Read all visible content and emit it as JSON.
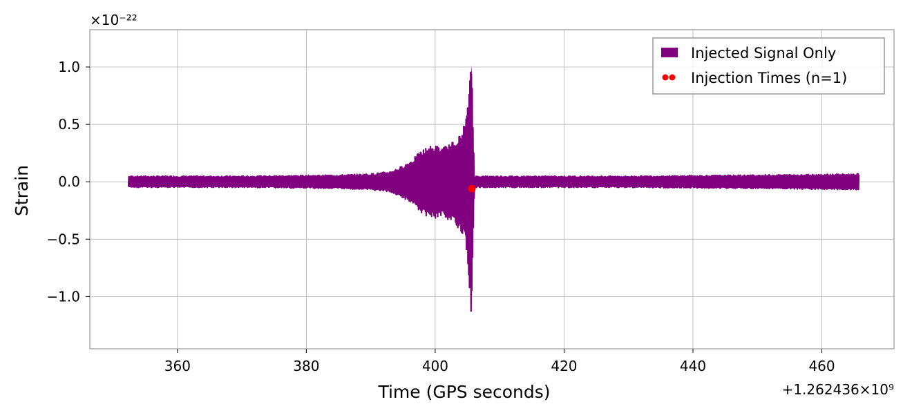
{
  "chart_data": {
    "type": "line",
    "xlabel": "Time (GPS seconds)",
    "ylabel": "Strain",
    "x_offset_text": "+1.262436×10⁹",
    "y_scale_text": "×10⁻²²",
    "xlim": [
      346.4,
      471.2
    ],
    "ylim": [
      -1.455,
      1.325
    ],
    "grid": true,
    "legend_position": "top-right",
    "x_ticks": [
      {
        "value": 360,
        "label": "360"
      },
      {
        "value": 380,
        "label": "380"
      },
      {
        "value": 400,
        "label": "400"
      },
      {
        "value": 420,
        "label": "420"
      },
      {
        "value": 440,
        "label": "440"
      },
      {
        "value": 460,
        "label": "460"
      }
    ],
    "y_ticks": [
      {
        "value": 1.0,
        "label": "1.0"
      },
      {
        "value": 0.5,
        "label": "0.5"
      },
      {
        "value": 0.0,
        "label": "0.0"
      },
      {
        "value": -0.5,
        "label": "−0.5"
      },
      {
        "value": -1.0,
        "label": "−1.0"
      }
    ],
    "series": [
      {
        "name": "Injected Signal Only",
        "color": "#800080",
        "style": "envelope",
        "envelope": [
          {
            "t": 352.4,
            "upper": 0.05,
            "lower": -0.05
          },
          {
            "t": 370.0,
            "upper": 0.05,
            "lower": -0.05
          },
          {
            "t": 385.0,
            "upper": 0.06,
            "lower": -0.06
          },
          {
            "t": 390.0,
            "upper": 0.07,
            "lower": -0.07
          },
          {
            "t": 393.0,
            "upper": 0.09,
            "lower": -0.09
          },
          {
            "t": 395.0,
            "upper": 0.14,
            "lower": -0.14
          },
          {
            "t": 396.5,
            "upper": 0.2,
            "lower": -0.2
          },
          {
            "t": 398.0,
            "upper": 0.28,
            "lower": -0.28
          },
          {
            "t": 399.0,
            "upper": 0.31,
            "lower": -0.31
          },
          {
            "t": 400.0,
            "upper": 0.32,
            "lower": -0.32
          },
          {
            "t": 401.0,
            "upper": 0.3,
            "lower": -0.3
          },
          {
            "t": 402.0,
            "upper": 0.32,
            "lower": -0.33
          },
          {
            "t": 403.0,
            "upper": 0.36,
            "lower": -0.37
          },
          {
            "t": 404.0,
            "upper": 0.42,
            "lower": -0.43
          },
          {
            "t": 404.6,
            "upper": 0.52,
            "lower": -0.52
          },
          {
            "t": 405.0,
            "upper": 0.65,
            "lower": -0.7
          },
          {
            "t": 405.4,
            "upper": 0.9,
            "lower": -1.0
          },
          {
            "t": 405.65,
            "upper": 1.2,
            "lower": -1.32
          },
          {
            "t": 405.85,
            "upper": 0.55,
            "lower": -0.55
          },
          {
            "t": 406.1,
            "upper": 0.05,
            "lower": -0.05
          },
          {
            "t": 430.0,
            "upper": 0.05,
            "lower": -0.05
          },
          {
            "t": 450.0,
            "upper": 0.06,
            "lower": -0.06
          },
          {
            "t": 465.8,
            "upper": 0.07,
            "lower": -0.07
          }
        ]
      },
      {
        "name": "Injection Times (n=1)",
        "color": "#ff0000",
        "style": "scatter",
        "points": [
          {
            "x": 405.7,
            "y": -0.06
          }
        ]
      }
    ]
  }
}
